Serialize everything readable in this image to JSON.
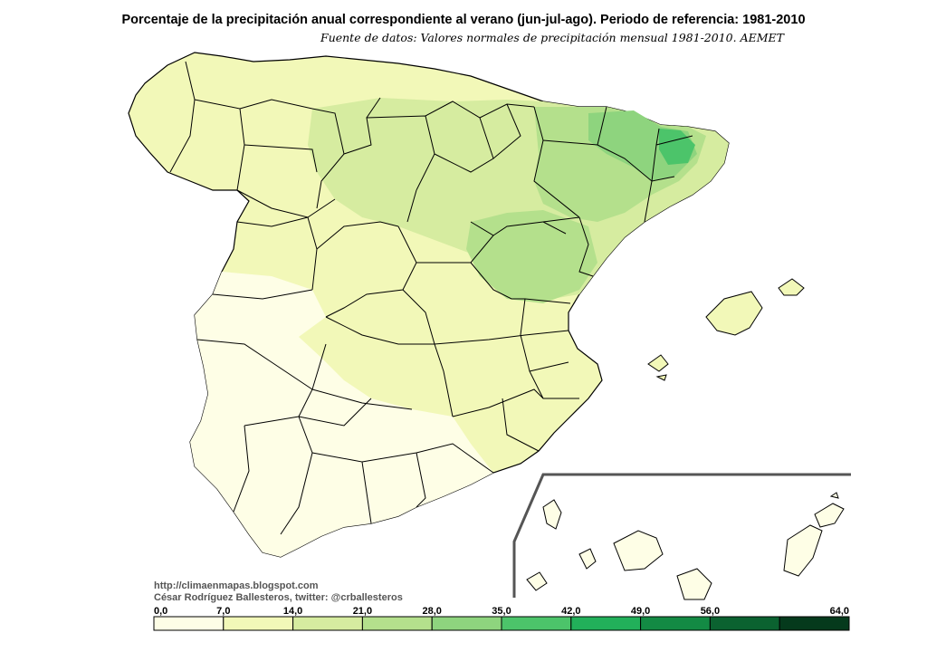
{
  "title": "Porcentaje de la precipitación anual correspondiente al verano (jun-jul-ago). Periodo de referencia: 1981-2010",
  "subtitle": "Fuente de datos: Valores normales de precipitación mensual 1981-2010. AEMET",
  "credits": {
    "url": "http://climaenmapas.blogspot.com",
    "author": "César Rodríguez Ballesteros, twitter: @crballesteros"
  },
  "legend": {
    "breaks": [
      "0,0",
      "7,0",
      "14,0",
      "21,0",
      "28,0",
      "35,0",
      "42,0",
      "49,0",
      "56,0",
      "64,0"
    ],
    "colors": [
      "#fefee6",
      "#f2f8b8",
      "#d6eca0",
      "#b4e08c",
      "#8ed47e",
      "#4cc46a",
      "#22b05a",
      "#138a44",
      "#0b6230",
      "#053a1c"
    ]
  },
  "map_colors": {
    "border": "#000000",
    "class_0": "#fefee6",
    "class_1": "#f2f8b8",
    "class_2": "#d6eca0",
    "class_3": "#b4e08c",
    "class_4": "#8ed47e",
    "class_5": "#4cc46a"
  }
}
